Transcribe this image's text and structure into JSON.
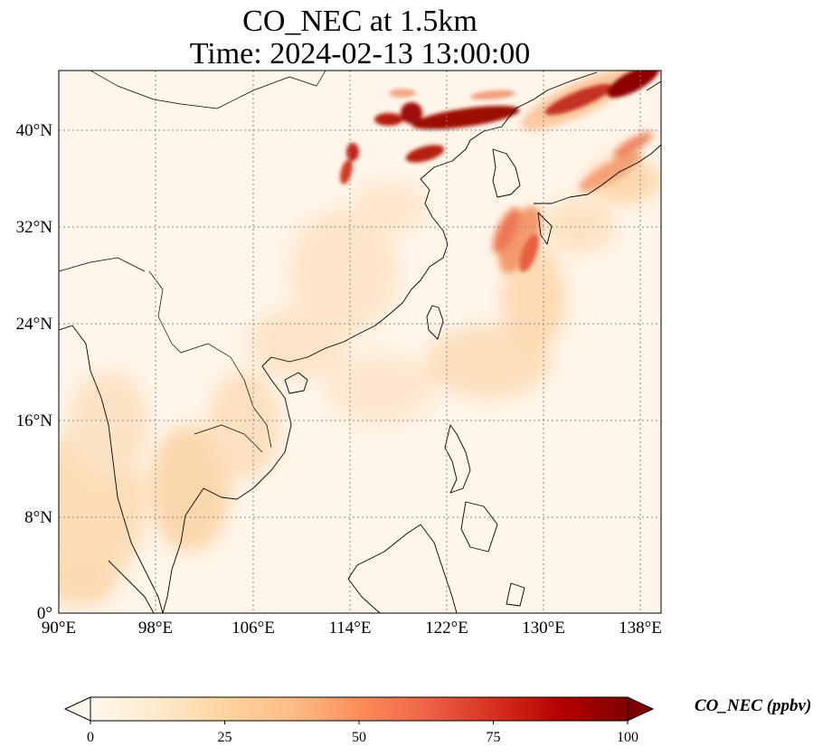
{
  "title": {
    "line1": "CO_NEC at 1.5km",
    "line2": "Time: 2024-02-13 13:00:00"
  },
  "map": {
    "projection": "PlateCarree",
    "lon_range": [
      90,
      139
    ],
    "lat_range": [
      0,
      45
    ],
    "lon_ticks": [
      90,
      98,
      106,
      114,
      122,
      130,
      138
    ],
    "lat_ticks": [
      0,
      8,
      16,
      24,
      32,
      40
    ],
    "lon_tick_labels": [
      "90°E",
      "98°E",
      "106°E",
      "114°E",
      "122°E",
      "130°E",
      "138°E"
    ],
    "lat_tick_labels": [
      "0°",
      "8°N",
      "16°N",
      "24°N",
      "32°N",
      "40°N"
    ],
    "gridlines": "dotted",
    "colormap": "OrRd",
    "colors": {
      "low": "#fff7ec",
      "mid_low": "#fdd49e",
      "mid": "#fc8d59",
      "high": "#d7301f",
      "max": "#7f0000",
      "coastline": "#000000"
    }
  },
  "colorbar": {
    "label": "CO_NEC (ppbv)",
    "min": 0,
    "max": 100,
    "ticks": [
      0,
      25,
      50,
      75,
      100
    ],
    "tick_labels": [
      "0",
      "25",
      "50",
      "75",
      "100"
    ],
    "extend": "both",
    "orientation": "horizontal"
  }
}
